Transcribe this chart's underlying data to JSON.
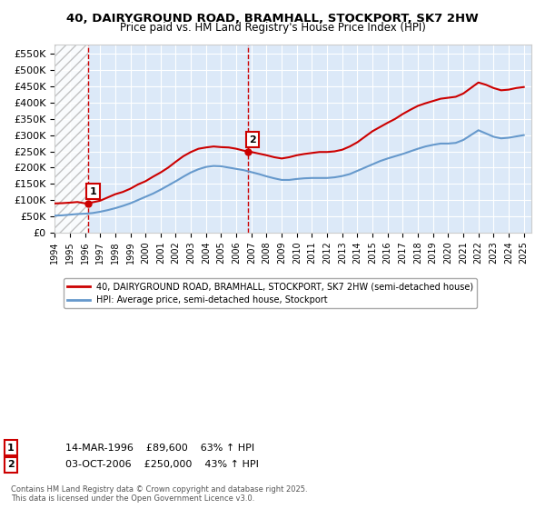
{
  "title_line1": "40, DAIRYGROUND ROAD, BRAMHALL, STOCKPORT, SK7 2HW",
  "title_line2": "Price paid vs. HM Land Registry's House Price Index (HPI)",
  "ylabel": "",
  "xlabel": "",
  "xlim_start": 1994.0,
  "xlim_end": 2025.5,
  "ylim_min": 0,
  "ylim_max": 580000,
  "yticks": [
    0,
    50000,
    100000,
    150000,
    200000,
    250000,
    300000,
    350000,
    400000,
    450000,
    500000,
    550000
  ],
  "ytick_labels": [
    "£0",
    "£50K",
    "£100K",
    "£150K",
    "£200K",
    "£250K",
    "£300K",
    "£350K",
    "£400K",
    "£450K",
    "£500K",
    "£550K"
  ],
  "xticks": [
    1994,
    1995,
    1996,
    1997,
    1998,
    1999,
    2000,
    2001,
    2002,
    2003,
    2004,
    2005,
    2006,
    2007,
    2008,
    2009,
    2010,
    2011,
    2012,
    2013,
    2014,
    2015,
    2016,
    2017,
    2018,
    2019,
    2020,
    2021,
    2022,
    2023,
    2024,
    2025
  ],
  "purchase1_x": 1996.2,
  "purchase1_y": 89600,
  "purchase1_label": "1",
  "purchase2_x": 2006.75,
  "purchase2_y": 250000,
  "purchase2_label": "2",
  "red_color": "#cc0000",
  "blue_color": "#6699cc",
  "background_fill": "#dce9f8",
  "hatch_region_end": 1996.2,
  "hatch_region_color": "#cccccc",
  "legend_line1": "40, DAIRYGROUND ROAD, BRAMHALL, STOCKPORT, SK7 2HW (semi-detached house)",
  "legend_line2": "HPI: Average price, semi-detached house, Stockport",
  "annot1_date": "14-MAR-1996",
  "annot1_price": "£89,600",
  "annot1_hpi": "63% ↑ HPI",
  "annot2_date": "03-OCT-2006",
  "annot2_price": "£250,000",
  "annot2_hpi": "43% ↑ HPI",
  "footnote": "Contains HM Land Registry data © Crown copyright and database right 2025.\nThis data is licensed under the Open Government Licence v3.0.",
  "red_line_x": [
    1994.0,
    1994.5,
    1995.0,
    1995.5,
    1996.0,
    1996.2,
    1996.5,
    1997.0,
    1997.5,
    1998.0,
    1998.5,
    1999.0,
    1999.5,
    2000.0,
    2000.5,
    2001.0,
    2001.5,
    2002.0,
    2002.5,
    2003.0,
    2003.5,
    2004.0,
    2004.5,
    2005.0,
    2005.5,
    2006.0,
    2006.5,
    2006.75,
    2007.0,
    2007.5,
    2008.0,
    2008.5,
    2009.0,
    2009.5,
    2010.0,
    2010.5,
    2011.0,
    2011.5,
    2012.0,
    2012.5,
    2013.0,
    2013.5,
    2014.0,
    2014.5,
    2015.0,
    2015.5,
    2016.0,
    2016.5,
    2017.0,
    2017.5,
    2018.0,
    2018.5,
    2019.0,
    2019.5,
    2020.0,
    2020.5,
    2021.0,
    2021.5,
    2022.0,
    2022.5,
    2023.0,
    2023.5,
    2024.0,
    2024.5,
    2025.0
  ],
  "red_line_y": [
    89600,
    90500,
    92000,
    94000,
    90000,
    89600,
    93000,
    98000,
    108000,
    118000,
    125000,
    135000,
    148000,
    158000,
    172000,
    185000,
    200000,
    218000,
    235000,
    248000,
    258000,
    262000,
    265000,
    263000,
    262000,
    258000,
    252000,
    250000,
    248000,
    243000,
    238000,
    232000,
    228000,
    232000,
    238000,
    242000,
    245000,
    248000,
    248000,
    250000,
    255000,
    265000,
    278000,
    295000,
    312000,
    325000,
    338000,
    350000,
    365000,
    378000,
    390000,
    398000,
    405000,
    412000,
    415000,
    418000,
    428000,
    445000,
    462000,
    455000,
    445000,
    438000,
    440000,
    445000,
    448000
  ],
  "blue_line_x": [
    1994.0,
    1994.5,
    1995.0,
    1995.5,
    1996.0,
    1996.5,
    1997.0,
    1997.5,
    1998.0,
    1998.5,
    1999.0,
    1999.5,
    2000.0,
    2000.5,
    2001.0,
    2001.5,
    2002.0,
    2002.5,
    2003.0,
    2003.5,
    2004.0,
    2004.5,
    2005.0,
    2005.5,
    2006.0,
    2006.5,
    2007.0,
    2007.5,
    2008.0,
    2008.5,
    2009.0,
    2009.5,
    2010.0,
    2010.5,
    2011.0,
    2011.5,
    2012.0,
    2012.5,
    2013.0,
    2013.5,
    2014.0,
    2014.5,
    2015.0,
    2015.5,
    2016.0,
    2016.5,
    2017.0,
    2017.5,
    2018.0,
    2018.5,
    2019.0,
    2019.5,
    2020.0,
    2020.5,
    2021.0,
    2021.5,
    2022.0,
    2022.5,
    2023.0,
    2023.5,
    2024.0,
    2024.5,
    2025.0
  ],
  "blue_line_y": [
    52000,
    53000,
    55000,
    57000,
    58000,
    60000,
    64000,
    69000,
    75000,
    82000,
    90000,
    100000,
    110000,
    120000,
    132000,
    145000,
    158000,
    172000,
    185000,
    195000,
    202000,
    205000,
    204000,
    200000,
    196000,
    192000,
    186000,
    180000,
    173000,
    167000,
    162000,
    162000,
    165000,
    167000,
    168000,
    168000,
    168000,
    170000,
    174000,
    180000,
    190000,
    200000,
    210000,
    220000,
    228000,
    235000,
    242000,
    250000,
    258000,
    265000,
    270000,
    274000,
    274000,
    276000,
    285000,
    300000,
    315000,
    305000,
    295000,
    290000,
    292000,
    296000,
    300000
  ]
}
